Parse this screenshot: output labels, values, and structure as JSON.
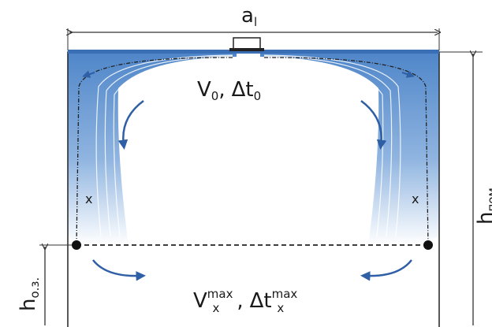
{
  "labels": {
    "width": {
      "symbol": "a",
      "subscript": "l"
    },
    "room_height": {
      "symbol": "h",
      "subscript": "пом"
    },
    "zone_height": {
      "symbol": "h",
      "subscript": "о.з."
    },
    "supply": {
      "velocity": "V",
      "velocity_sub": "0",
      "separator": ",",
      "temperature": "Δt",
      "temperature_sub": "0"
    },
    "zone": {
      "velocity": "V",
      "velocity_sub": "x",
      "velocity_sup": "max",
      "separator": ",",
      "temperature": "Δt",
      "temperature_sub": "x",
      "temperature_sup": "max"
    },
    "markers": [
      "x",
      "x"
    ]
  }
}
